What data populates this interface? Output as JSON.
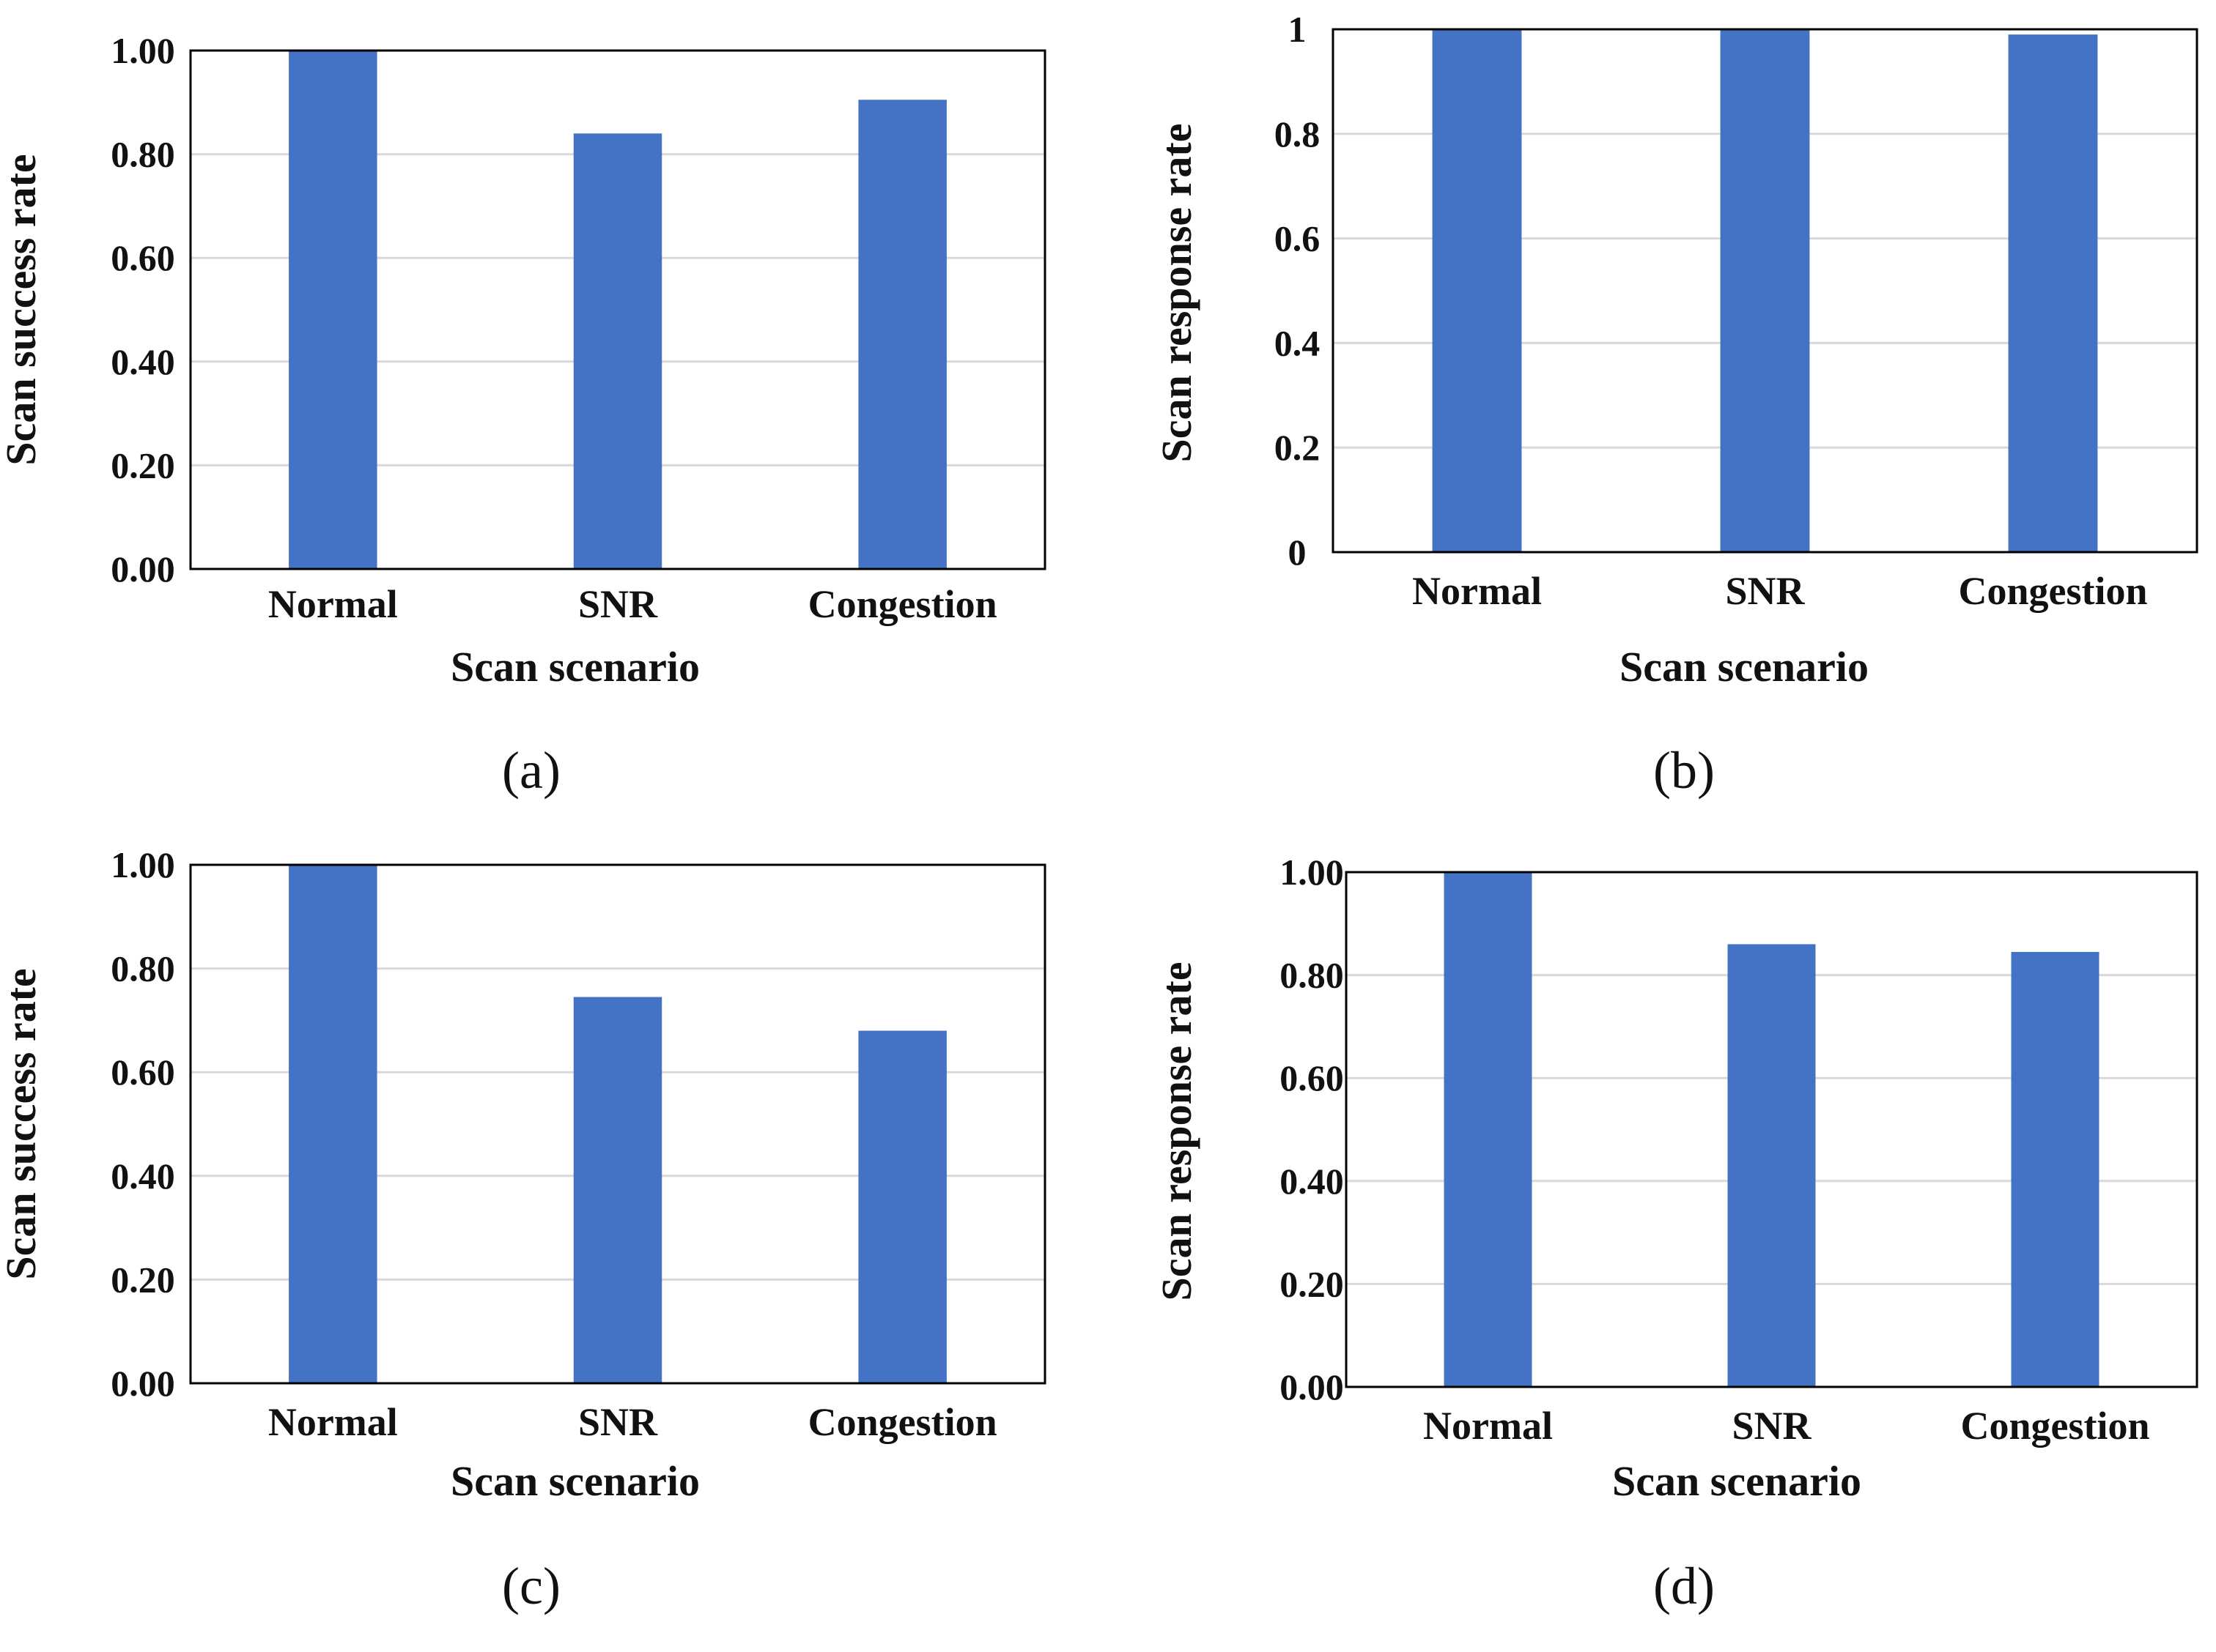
{
  "colors": {
    "bar": "#4472C4",
    "grid": "#d9d9d9",
    "frame": "#000000",
    "text": "#111111"
  },
  "chart_data": [
    {
      "panel": "(a)",
      "type": "bar",
      "categories": [
        "Normal",
        "SNR",
        "Congestion"
      ],
      "values": [
        1.0,
        0.84,
        0.905
      ],
      "xlabel": "Scan scenario",
      "ylabel": "Scan success rate",
      "ylim": [
        0,
        1
      ],
      "yticks": [
        "0.00",
        "0.20",
        "0.40",
        "0.60",
        "0.80",
        "1.00"
      ],
      "grid": true
    },
    {
      "panel": "(b)",
      "type": "bar",
      "categories": [
        "Normal",
        "SNR",
        "Congestion"
      ],
      "values": [
        1.0,
        1.0,
        0.99
      ],
      "xlabel": "Scan scenario",
      "ylabel": "Scan response rate",
      "ylim": [
        0,
        1
      ],
      "yticks": [
        "0",
        "0.2",
        "0.4",
        "0.6",
        "0.8",
        "1"
      ],
      "grid": true
    },
    {
      "panel": "(c)",
      "type": "bar",
      "categories": [
        "Normal",
        "SNR",
        "Congestion"
      ],
      "values": [
        1.0,
        0.745,
        0.68
      ],
      "xlabel": "Scan scenario",
      "ylabel": "Scan success rate",
      "ylim": [
        0,
        1
      ],
      "yticks": [
        "0.00",
        "0.20",
        "0.40",
        "0.60",
        "0.80",
        "1.00"
      ],
      "grid": true
    },
    {
      "panel": "(d)",
      "type": "bar",
      "categories": [
        "Normal",
        "SNR",
        "Congestion"
      ],
      "values": [
        1.0,
        0.86,
        0.845
      ],
      "xlabel": "Scan scenario",
      "ylabel": "Scan response rate",
      "ylim": [
        0,
        1
      ],
      "yticks": [
        "0.00",
        "0.20",
        "0.40",
        "0.60",
        "0.80",
        "1.00"
      ],
      "grid": true
    }
  ]
}
